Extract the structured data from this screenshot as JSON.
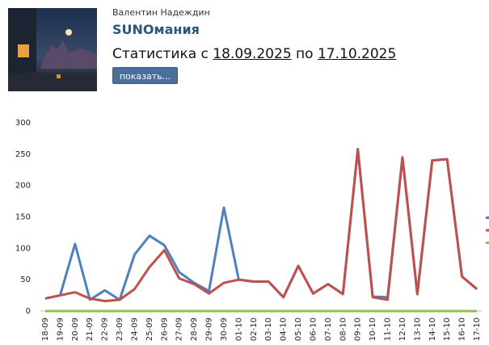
{
  "header": {
    "author": "Валентин Надеждин",
    "title": "SUNOмания",
    "stats_prefix": "Статистика с",
    "date_from": "18.09.2025",
    "connector": "по",
    "date_to": "17.10.2025",
    "button": "показать..."
  },
  "chart_data": {
    "type": "line",
    "categories": [
      "18-09",
      "19-09",
      "20-09",
      "21-09",
      "22-09",
      "23-09",
      "24-09",
      "25-09",
      "26-09",
      "27-09",
      "28-09",
      "29-09",
      "30-09",
      "01-10",
      "02-10",
      "03-10",
      "04-10",
      "05-10",
      "06-10",
      "07-10",
      "08-10",
      "09-10",
      "10-10",
      "11-10",
      "12-10",
      "13-10",
      "14-10",
      "15-10",
      "16-10",
      "17-10"
    ],
    "series": [
      {
        "color": "#4f81bd",
        "values": [
          20,
          25,
          107,
          18,
          33,
          18,
          90,
          120,
          105,
          62,
          45,
          32,
          165,
          50,
          47,
          47,
          22,
          72,
          28,
          43,
          27,
          258,
          23,
          22,
          245,
          27,
          240,
          242,
          55,
          35
        ]
      },
      {
        "color": "#c0504d",
        "values": [
          20,
          25,
          30,
          20,
          16,
          18,
          35,
          70,
          97,
          52,
          43,
          28,
          45,
          50,
          47,
          47,
          22,
          72,
          28,
          43,
          27,
          258,
          22,
          18,
          245,
          27,
          240,
          242,
          55,
          35
        ]
      },
      {
        "color": "#9bbb59",
        "values": [
          0,
          0,
          0,
          0,
          0,
          0,
          0,
          0,
          0,
          0,
          0,
          0,
          0,
          0,
          0,
          0,
          0,
          0,
          0,
          0,
          0,
          0,
          0,
          0,
          0,
          0,
          0,
          0,
          0,
          0
        ]
      }
    ],
    "ylim": [
      0,
      300
    ],
    "yticks": [
      0,
      50,
      100,
      150,
      200,
      250,
      300
    ],
    "grid": false
  }
}
